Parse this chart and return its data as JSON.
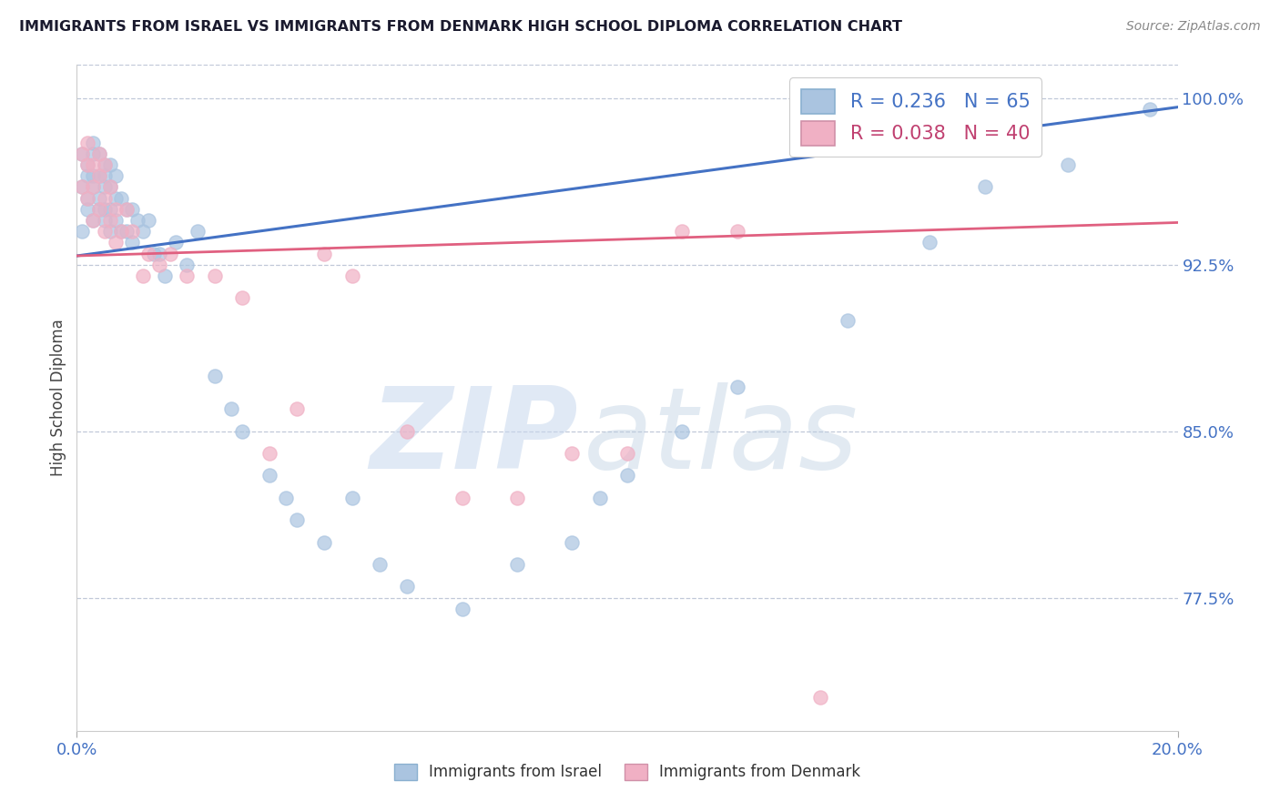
{
  "title": "IMMIGRANTS FROM ISRAEL VS IMMIGRANTS FROM DENMARK HIGH SCHOOL DIPLOMA CORRELATION CHART",
  "source": "Source: ZipAtlas.com",
  "ylabel": "High School Diploma",
  "ytick_values": [
    1.0,
    0.925,
    0.85,
    0.775
  ],
  "xlim": [
    0.0,
    0.2
  ],
  "ylim": [
    0.715,
    1.015
  ],
  "israel_color": "#aac4e0",
  "denmark_color": "#f0b0c4",
  "israel_line_color": "#4472c4",
  "denmark_line_color": "#e06080",
  "background_color": "#ffffff",
  "grid_color": "#c0c8d8",
  "israel_x": [
    0.001,
    0.001,
    0.001,
    0.002,
    0.002,
    0.002,
    0.002,
    0.003,
    0.003,
    0.003,
    0.003,
    0.003,
    0.004,
    0.004,
    0.004,
    0.004,
    0.005,
    0.005,
    0.005,
    0.005,
    0.005,
    0.006,
    0.006,
    0.006,
    0.006,
    0.007,
    0.007,
    0.007,
    0.008,
    0.008,
    0.009,
    0.009,
    0.01,
    0.01,
    0.011,
    0.012,
    0.013,
    0.014,
    0.015,
    0.016,
    0.018,
    0.02,
    0.022,
    0.025,
    0.028,
    0.03,
    0.035,
    0.038,
    0.04,
    0.045,
    0.05,
    0.055,
    0.06,
    0.07,
    0.08,
    0.09,
    0.095,
    0.1,
    0.11,
    0.12,
    0.14,
    0.155,
    0.165,
    0.18,
    0.195
  ],
  "israel_y": [
    0.96,
    0.94,
    0.975,
    0.955,
    0.97,
    0.95,
    0.965,
    0.96,
    0.975,
    0.945,
    0.965,
    0.98,
    0.95,
    0.965,
    0.975,
    0.955,
    0.945,
    0.96,
    0.97,
    0.95,
    0.965,
    0.95,
    0.94,
    0.96,
    0.97,
    0.945,
    0.955,
    0.965,
    0.94,
    0.955,
    0.94,
    0.95,
    0.935,
    0.95,
    0.945,
    0.94,
    0.945,
    0.93,
    0.93,
    0.92,
    0.935,
    0.925,
    0.94,
    0.875,
    0.86,
    0.85,
    0.83,
    0.82,
    0.81,
    0.8,
    0.82,
    0.79,
    0.78,
    0.77,
    0.79,
    0.8,
    0.82,
    0.83,
    0.85,
    0.87,
    0.9,
    0.935,
    0.96,
    0.97,
    0.995
  ],
  "denmark_x": [
    0.001,
    0.001,
    0.002,
    0.002,
    0.002,
    0.003,
    0.003,
    0.003,
    0.004,
    0.004,
    0.004,
    0.005,
    0.005,
    0.005,
    0.006,
    0.006,
    0.007,
    0.007,
    0.008,
    0.009,
    0.01,
    0.012,
    0.013,
    0.015,
    0.017,
    0.02,
    0.025,
    0.03,
    0.035,
    0.04,
    0.045,
    0.05,
    0.06,
    0.07,
    0.08,
    0.09,
    0.1,
    0.11,
    0.12,
    0.135
  ],
  "denmark_y": [
    0.96,
    0.975,
    0.955,
    0.97,
    0.98,
    0.945,
    0.96,
    0.97,
    0.95,
    0.965,
    0.975,
    0.94,
    0.955,
    0.97,
    0.945,
    0.96,
    0.95,
    0.935,
    0.94,
    0.95,
    0.94,
    0.92,
    0.93,
    0.925,
    0.93,
    0.92,
    0.92,
    0.91,
    0.84,
    0.86,
    0.93,
    0.92,
    0.85,
    0.82,
    0.82,
    0.84,
    0.84,
    0.94,
    0.94,
    0.73
  ],
  "israel_line_x": [
    0.0,
    0.2
  ],
  "israel_line_y": [
    0.929,
    0.996
  ],
  "denmark_line_x": [
    0.0,
    0.2
  ],
  "denmark_line_y": [
    0.929,
    0.944
  ]
}
